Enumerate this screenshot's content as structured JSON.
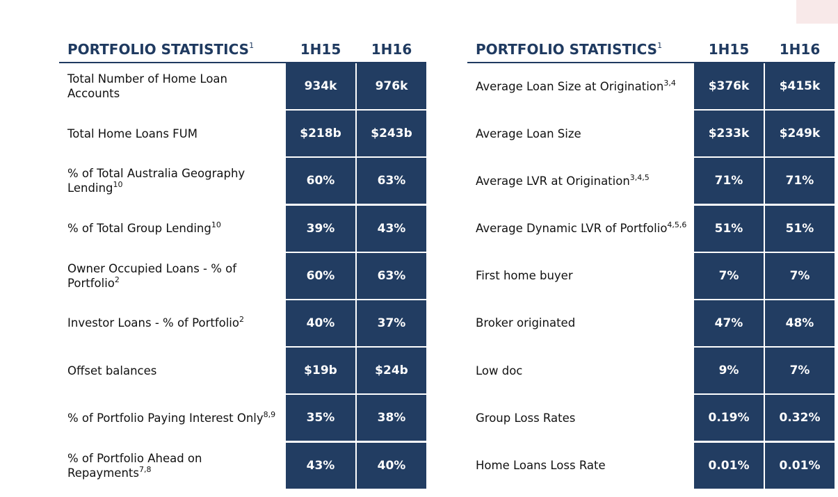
{
  "left_table": {
    "title": "PORTFOLIO STATISTICS",
    "title_note": "1",
    "col1": "1H15",
    "col2": "1H16",
    "rows": [
      {
        "label": "Total Number of Home Loan Accounts",
        "note": "",
        "v1": "934k",
        "v2": "976k"
      },
      {
        "label": "Total Home Loans FUM",
        "note": "",
        "v1": "$218b",
        "v2": "$243b"
      },
      {
        "label": "% of Total Australia Geography Lending",
        "note": "10",
        "v1": "60%",
        "v2": "63%"
      },
      {
        "label": "% of Total Group Lending",
        "note": "10",
        "v1": "39%",
        "v2": "43%"
      },
      {
        "label": "Owner Occupied Loans - % of Portfolio",
        "note": "2",
        "v1": "60%",
        "v2": "63%"
      },
      {
        "label": "Investor Loans - % of Portfolio",
        "note": "2",
        "v1": "40%",
        "v2": "37%"
      },
      {
        "label": "Offset balances",
        "note": "",
        "v1": "$19b",
        "v2": "$24b"
      },
      {
        "label": "% of Portfolio Paying Interest Only",
        "note": "8,9",
        "v1": "35%",
        "v2": "38%"
      },
      {
        "label": "% of Portfolio Ahead on Repayments",
        "note": "7,8",
        "v1": "43%",
        "v2": "40%"
      }
    ]
  },
  "right_table": {
    "title": "PORTFOLIO STATISTICS",
    "title_note": "1",
    "col1": "1H15",
    "col2": "1H16",
    "rows": [
      {
        "label": "Average Loan Size at Origination",
        "note": "3,4",
        "v1": "$376k",
        "v2": "$415k"
      },
      {
        "label": "Average Loan Size",
        "note": "",
        "v1": "$233k",
        "v2": "$249k"
      },
      {
        "label": "Average LVR at Origination",
        "note": "3,4,5",
        "v1": "71%",
        "v2": "71%"
      },
      {
        "label": "Average Dynamic LVR of Portfolio",
        "note": "4,5,6",
        "v1": "51%",
        "v2": "51%"
      },
      {
        "label": "First home buyer",
        "note": "",
        "v1": "7%",
        "v2": "7%"
      },
      {
        "label": "Broker originated",
        "note": "",
        "v1": "47%",
        "v2": "48%"
      },
      {
        "label": "Low doc",
        "note": "",
        "v1": "9%",
        "v2": "7%"
      },
      {
        "label": "Group Loss Rates",
        "note": "",
        "v1": "0.19%",
        "v2": "0.32%"
      },
      {
        "label": "Home Loans Loss Rate",
        "note": "",
        "v1": "0.01%",
        "v2": "0.01%"
      }
    ]
  }
}
